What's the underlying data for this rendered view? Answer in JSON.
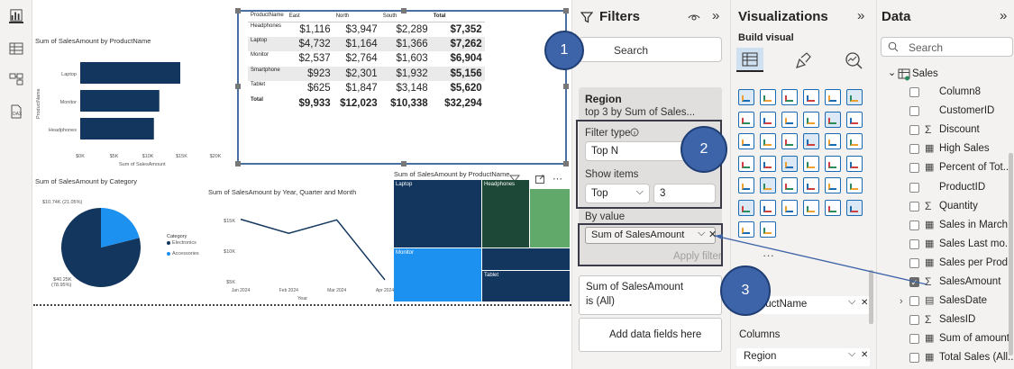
{
  "filters": {
    "title": "Filters",
    "search": "Search",
    "card_region": {
      "title": "Region",
      "summary": "top 3 by Sum of Sales..."
    },
    "filter_type_label": "Filter type",
    "filter_type_value": "Top N",
    "show_items_label": "Show items",
    "show_items_dir": "Top",
    "show_items_count": "3",
    "by_value_label": "By value",
    "by_value_field": "Sum of SalesAmount",
    "apply": "Apply filter",
    "card_sales": {
      "title": "Sum of SalesAmount",
      "summary": "is (All)"
    },
    "add_fields": "Add data fields here"
  },
  "visualizations": {
    "title": "Visualizations",
    "build": "Build visual",
    "rows_field": "ProductName",
    "columns_label": "Columns",
    "columns_field": "Region"
  },
  "data_pane": {
    "title": "Data",
    "search": "Search",
    "table": "Sales",
    "fields": [
      {
        "name": "Column8",
        "icon": "",
        "checked": false
      },
      {
        "name": "CustomerID",
        "icon": "",
        "checked": false
      },
      {
        "name": "Discount",
        "icon": "Σ",
        "checked": false
      },
      {
        "name": "High Sales",
        "icon": "calc",
        "checked": false
      },
      {
        "name": "Percent of Tot...",
        "icon": "calc",
        "checked": false
      },
      {
        "name": "ProductID",
        "icon": "",
        "checked": false
      },
      {
        "name": "Quantity",
        "icon": "Σ",
        "checked": false
      },
      {
        "name": "Sales in March",
        "icon": "calc",
        "checked": false
      },
      {
        "name": "Sales Last mo...",
        "icon": "calc",
        "checked": false
      },
      {
        "name": "Sales per Prod...",
        "icon": "calc",
        "checked": false
      },
      {
        "name": "SalesAmount",
        "icon": "Σ",
        "checked": true
      },
      {
        "name": "SalesDate",
        "icon": "table",
        "checked": false
      },
      {
        "name": "SalesID",
        "icon": "Σ",
        "checked": false
      },
      {
        "name": "Sum of amount",
        "icon": "calc",
        "checked": false
      },
      {
        "name": "Total Sales (All...",
        "icon": "calc",
        "checked": false
      }
    ]
  },
  "callouts": [
    "1",
    "2",
    "3"
  ],
  "matrix": {
    "headers": [
      "ProductName",
      "East",
      "North",
      "South",
      "Total"
    ],
    "rows": [
      {
        "label": "Headphones",
        "values": [
          "$1,116",
          "$3,947",
          "$2,289",
          "$7,352"
        ]
      },
      {
        "label": "Laptop",
        "values": [
          "$4,732",
          "$1,164",
          "$1,366",
          "$7,262"
        ]
      },
      {
        "label": "Monitor",
        "values": [
          "$2,537",
          "$2,764",
          "$1,603",
          "$6,904"
        ]
      },
      {
        "label": "Smartphone",
        "values": [
          "$923",
          "$2,301",
          "$1,932",
          "$5,156"
        ]
      },
      {
        "label": "Tablet",
        "values": [
          "$625",
          "$1,847",
          "$3,148",
          "$5,620"
        ]
      },
      {
        "label": "Total",
        "values": [
          "$9,933",
          "$12,023",
          "$10,338",
          "$32,294"
        ]
      }
    ]
  },
  "bar_chart": {
    "title": "Sum of SalesAmount by ProductName",
    "ylabel": "ProductName",
    "xlabel": "Sum of SalesAmount",
    "ticks": [
      "$0K",
      "$5K",
      "$10K",
      "$15K",
      "$20K"
    ],
    "categories": [
      "Laptop",
      "Monitor",
      "Headphones"
    ]
  },
  "pie_chart": {
    "title": "Sum of SalesAmount by Category",
    "legend_title": "Category",
    "legend": [
      "Electronics",
      "Accessories"
    ],
    "label_top": "$10.74K (21.05%)",
    "label_bottom_1": "$40.25K",
    "label_bottom_2": "(78.95%)"
  },
  "line_chart": {
    "title": "Sum of SalesAmount by Year, Quarter and Month",
    "xlabel": "Year",
    "y_ticks": [
      "$15K",
      "$10K",
      "$5K"
    ],
    "x_ticks": [
      "Jan 2024",
      "Feb 2024",
      "Mar 2024",
      "Apr 2024"
    ]
  },
  "treemap": {
    "title": "Sum of SalesAmount by ProductName",
    "labels": [
      "Laptop",
      "Headphones",
      "Monitor",
      "Tablet"
    ]
  },
  "chart_data": [
    {
      "type": "bar",
      "title": "Sum of SalesAmount by ProductName",
      "categories": [
        "Laptop",
        "Monitor",
        "Headphones"
      ],
      "values": [
        14.8,
        11.7,
        10.9
      ],
      "xlabel": "Sum of SalesAmount",
      "ylabel": "ProductName",
      "xlim": [
        0,
        20
      ]
    },
    {
      "type": "pie",
      "title": "Sum of SalesAmount by Category",
      "categories": [
        "Electronics",
        "Accessories"
      ],
      "values": [
        40.25,
        10.74
      ]
    },
    {
      "type": "line",
      "title": "Sum of SalesAmount by Year, Quarter and Month",
      "x": [
        "Jan 2024",
        "Feb 2024",
        "Mar 2024",
        "Apr 2024"
      ],
      "values": [
        15.2,
        12.9,
        15.1,
        5.3
      ],
      "ylim": [
        5,
        15
      ],
      "xlabel": "Year"
    }
  ],
  "colors": {
    "accent": "#3d63a8",
    "navy": "#12365e",
    "blue": "#1d91f0",
    "green": "#60a96a",
    "darkgreen": "#1d4737",
    "panel": "#f3f2f1"
  }
}
